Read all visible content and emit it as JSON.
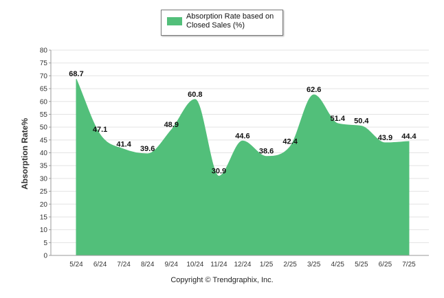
{
  "legend": {
    "label": "Absorption Rate based on Closed Sales (%)"
  },
  "copyright": "Copyright © Trendgraphix, Inc.",
  "colors": {
    "area": "#52bf7a",
    "grid": "#e3e3e3",
    "axis": "#9a9a9a",
    "label": "#111111"
  },
  "chart_data": {
    "type": "area",
    "title": "",
    "xlabel": "",
    "ylabel": "Absorption Rate%",
    "ylim": [
      0,
      80
    ],
    "ytick_step": 5,
    "grid": true,
    "legend_position": "top-center",
    "categories": [
      "5/24",
      "6/24",
      "7/24",
      "8/24",
      "9/24",
      "10/24",
      "11/24",
      "12/24",
      "1/25",
      "2/25",
      "3/25",
      "4/25",
      "5/25",
      "6/25",
      "7/25"
    ],
    "series": [
      {
        "name": "Absorption Rate based on Closed Sales (%)",
        "values": [
          68.7,
          47.1,
          41.4,
          39.6,
          48.9,
          60.8,
          30.9,
          44.6,
          38.6,
          42.4,
          62.6,
          51.4,
          50.4,
          43.9,
          44.4
        ]
      }
    ]
  }
}
